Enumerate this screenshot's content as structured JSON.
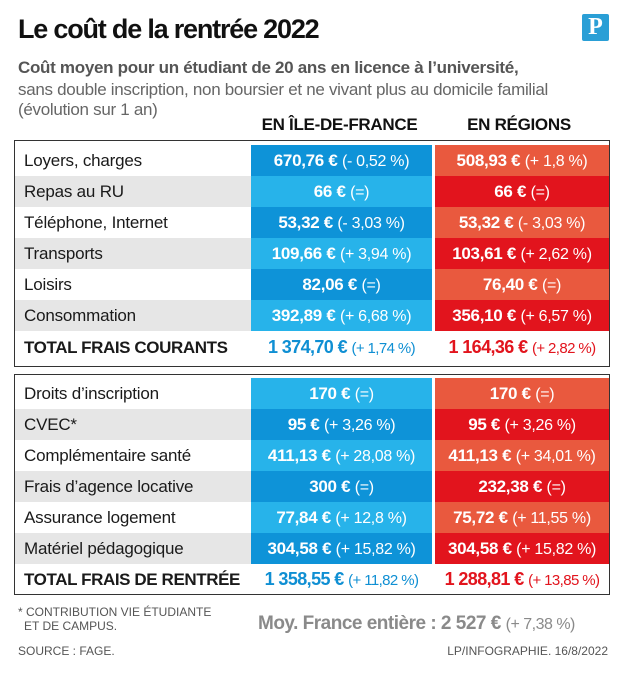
{
  "header": {
    "title": "Le coût de la rentrée 2022",
    "logo_letter": "P",
    "subtitle_bold": "Coût moyen pour un étudiant de 20 ans en licence à l’université,",
    "subtitle_rest": "sans double inscription, non boursier et ne vivant plus au domicile familial (évolution sur 1 an)"
  },
  "columns": {
    "idf": "EN ÎLE-DE-FRANCE",
    "regions": "EN RÉGIONS"
  },
  "colors": {
    "idf_dark": "#0e93d8",
    "idf_light": "#27b3ea",
    "regions_dark": "#e2141d",
    "regions_light": "#e9593e"
  },
  "frais_courants": [
    {
      "label": "Loyers, charges",
      "idf_value": "670,76 €",
      "idf_change": "(- 0,52 %)",
      "reg_value": "508,93 €",
      "reg_change": "(+ 1,8 %)"
    },
    {
      "label": "Repas au RU",
      "idf_value": "66 €",
      "idf_change": "(=)",
      "reg_value": "66 €",
      "reg_change": "(=)"
    },
    {
      "label": "Téléphone, Internet",
      "idf_value": "53,32 €",
      "idf_change": "(- 3,03 %)",
      "reg_value": "53,32 €",
      "reg_change": "(- 3,03 %)"
    },
    {
      "label": "Transports",
      "idf_value": "109,66 €",
      "idf_change": "(+ 3,94 %)",
      "reg_value": "103,61 €",
      "reg_change": "(+ 2,62 %)"
    },
    {
      "label": "Loisirs",
      "idf_value": "82,06 €",
      "idf_change": "(=)",
      "reg_value": "76,40 €",
      "reg_change": "(=)"
    },
    {
      "label": "Consommation",
      "idf_value": "392,89 €",
      "idf_change": "(+ 6,68 %)",
      "reg_value": "356,10 €",
      "reg_change": "(+ 6,57 %)"
    }
  ],
  "total_courants": {
    "label": "TOTAL FRAIS COURANTS",
    "idf_value": "1 374,70 €",
    "idf_change": "(+ 1,74 %)",
    "reg_value": "1 164,36 €",
    "reg_change": "(+ 2,82 %)"
  },
  "frais_rentree": [
    {
      "label": "Droits d’inscription",
      "idf_value": "170 €",
      "idf_change": "(=)",
      "reg_value": "170 €",
      "reg_change": "(=)"
    },
    {
      "label": "CVEC*",
      "idf_value": "95 €",
      "idf_change": "(+ 3,26 %)",
      "reg_value": "95 €",
      "reg_change": "(+ 3,26 %)"
    },
    {
      "label": "Complémentaire santé",
      "idf_value": "411,13 €",
      "idf_change": "(+ 28,08 %)",
      "reg_value": "411,13 €",
      "reg_change": "(+ 34,01 %)"
    },
    {
      "label": "Frais d’agence locative",
      "idf_value": "300 €",
      "idf_change": "(=)",
      "reg_value": "232,38 €",
      "reg_change": "(=)"
    },
    {
      "label": "Assurance logement",
      "idf_value": "77,84 €",
      "idf_change": "(+ 12,8 %)",
      "reg_value": "75,72 €",
      "reg_change": "(+ 11,55 %)"
    },
    {
      "label": "Matériel pédagogique",
      "idf_value": "304,58 €",
      "idf_change": "(+ 15,82 %)",
      "reg_value": "304,58 €",
      "reg_change": "(+ 15,82 %)"
    }
  ],
  "total_rentree": {
    "label": "TOTAL FRAIS DE RENTRÉE",
    "idf_value": "1 358,55 €",
    "idf_change": "(+ 11,82 %)",
    "reg_value": "1 288,81 €",
    "reg_change": "(+ 13,85 %)"
  },
  "footer": {
    "footnote_line1": "* CONTRIBUTION VIE ÉTUDIANTE",
    "footnote_line2": "ET DE CAMPUS.",
    "source": "SOURCE : FAGE.",
    "credit": "LP/INFOGRAPHIE.  16/8/2022",
    "moyenne_label": "Moy. France entière : 2 527 €",
    "moyenne_change": "(+ 7,38 %)"
  }
}
